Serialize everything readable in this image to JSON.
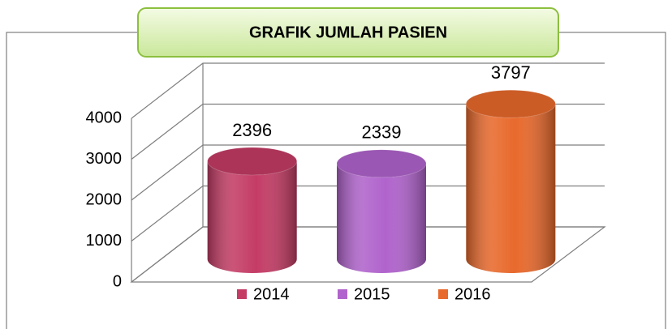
{
  "chart_data": {
    "type": "bar",
    "title": "GRAFIK JUMLAH PASIEN",
    "categories": [
      null
    ],
    "series": [
      {
        "name": "2014",
        "color": "#c43c66",
        "values": [
          2396
        ]
      },
      {
        "name": "2015",
        "color": "#b063cc",
        "values": [
          2339
        ]
      },
      {
        "name": "2016",
        "color": "#e8692c",
        "values": [
          3797
        ]
      }
    ],
    "ylim": [
      0,
      4000
    ],
    "yticks": [
      0,
      1000,
      2000,
      3000,
      4000
    ],
    "grid": true,
    "legend": "bottom"
  }
}
